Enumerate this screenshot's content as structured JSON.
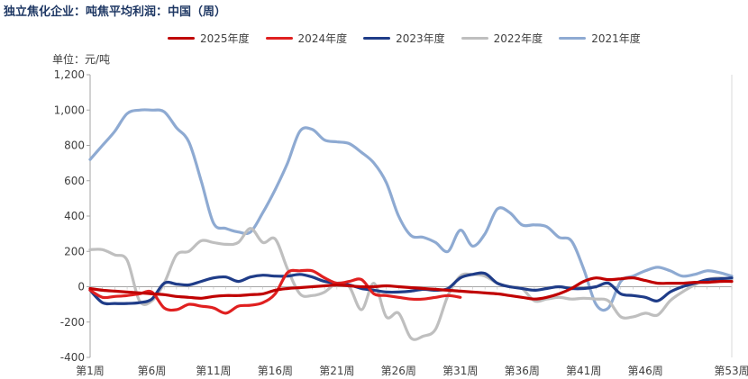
{
  "title": "独立焦化企业：吨焦平均利润：中国（周）",
  "chart_data": {
    "type": "line",
    "unit": "单位：元/吨",
    "ylim": [
      -400,
      1200
    ],
    "yticks": [
      "-400",
      "-200",
      "0",
      "200",
      "400",
      "600",
      "800",
      "1,000",
      "1,200"
    ],
    "ytick_values": [
      -400,
      -200,
      0,
      200,
      400,
      600,
      800,
      1000,
      1200
    ],
    "xlim": [
      1,
      53
    ],
    "xticks": [
      "第1周",
      "第6周",
      "第11周",
      "第16周",
      "第21周",
      "第26周",
      "第31周",
      "第36周",
      "第41周",
      "第46周",
      "第53周"
    ],
    "xtick_values": [
      1,
      6,
      11,
      16,
      21,
      26,
      31,
      36,
      41,
      46,
      53
    ],
    "grid": false,
    "legend_position": "top",
    "series": [
      {
        "name": "2025年度",
        "color": "#c00000",
        "x": [
          1,
          2,
          3,
          4,
          5,
          6,
          7,
          8,
          9,
          10,
          11,
          12,
          13,
          14,
          15,
          16,
          17,
          18,
          19,
          20,
          21,
          22,
          23,
          24,
          25,
          26,
          27,
          28,
          29,
          30,
          31,
          32,
          33,
          34,
          35,
          36,
          37,
          38,
          39,
          40,
          41,
          42,
          43,
          44,
          45,
          46,
          47,
          48,
          49,
          50,
          51,
          52,
          53
        ],
        "y": [
          -10,
          -20,
          -25,
          -30,
          -35,
          -40,
          -45,
          -55,
          -60,
          -65,
          -55,
          -50,
          -50,
          -45,
          -40,
          -20,
          -10,
          -5,
          0,
          5,
          10,
          5,
          0,
          0,
          5,
          0,
          -5,
          -10,
          -15,
          -20,
          -25,
          -30,
          -35,
          -40,
          -50,
          -60,
          -70,
          -60,
          -40,
          -10,
          30,
          50,
          40,
          45,
          50,
          35,
          20,
          20,
          20,
          25,
          25,
          30,
          30
        ]
      },
      {
        "name": "2024年度",
        "color": "#e02020",
        "x": [
          1,
          2,
          3,
          4,
          5,
          6,
          7,
          8,
          9,
          10,
          11,
          12,
          13,
          14,
          15,
          16,
          17,
          18,
          19,
          20,
          21,
          22,
          23,
          24,
          25,
          26,
          27,
          28,
          29,
          30,
          31
        ],
        "y": [
          -20,
          -60,
          -55,
          -50,
          -40,
          -30,
          -120,
          -130,
          -100,
          -110,
          -120,
          -150,
          -110,
          -105,
          -90,
          -40,
          80,
          90,
          90,
          50,
          20,
          30,
          40,
          -40,
          -50,
          -60,
          -70,
          -70,
          -60,
          -50,
          -60
        ]
      },
      {
        "name": "2023年度",
        "color": "#1f3c88",
        "x": [
          1,
          2,
          3,
          4,
          5,
          6,
          7,
          8,
          9,
          10,
          11,
          12,
          13,
          14,
          15,
          16,
          17,
          18,
          19,
          20,
          21,
          22,
          23,
          24,
          25,
          26,
          27,
          28,
          29,
          30,
          31,
          32,
          33,
          34,
          35,
          36,
          37,
          38,
          39,
          40,
          41,
          42,
          43,
          44,
          45,
          46,
          47,
          48,
          49,
          50,
          51,
          52,
          53
        ],
        "y": [
          -20,
          -90,
          -95,
          -95,
          -90,
          -70,
          20,
          15,
          10,
          30,
          50,
          55,
          30,
          55,
          65,
          60,
          60,
          70,
          55,
          30,
          20,
          10,
          -10,
          -20,
          -30,
          -30,
          -25,
          -15,
          -20,
          -10,
          50,
          70,
          75,
          20,
          0,
          -10,
          -20,
          -10,
          0,
          -10,
          -10,
          0,
          20,
          -40,
          -50,
          -60,
          -80,
          -30,
          0,
          20,
          40,
          45,
          50
        ]
      },
      {
        "name": "2022年度",
        "color": "#bfbfbf",
        "x": [
          1,
          2,
          3,
          4,
          5,
          6,
          7,
          8,
          9,
          10,
          11,
          12,
          13,
          14,
          15,
          16,
          17,
          18,
          19,
          20,
          21,
          22,
          23,
          24,
          25,
          26,
          27,
          28,
          29,
          30,
          31,
          32,
          33,
          34,
          35,
          36,
          37,
          38,
          39,
          40,
          41,
          42,
          43,
          44,
          45,
          46,
          47,
          48,
          49,
          50,
          51,
          52,
          53
        ],
        "y": [
          210,
          210,
          180,
          150,
          -80,
          -80,
          20,
          180,
          200,
          260,
          250,
          240,
          250,
          330,
          250,
          270,
          100,
          -40,
          -50,
          -30,
          20,
          0,
          -130,
          20,
          -170,
          -150,
          -290,
          -280,
          -240,
          -50,
          60,
          70,
          60,
          20,
          0,
          -10,
          -80,
          -70,
          -60,
          -70,
          -65,
          -70,
          -80,
          -170,
          -170,
          -150,
          -160,
          -80,
          -30,
          10,
          40,
          50,
          40
        ]
      },
      {
        "name": "2021年度",
        "color": "#8eaad2",
        "x": [
          1,
          2,
          3,
          4,
          5,
          6,
          7,
          8,
          9,
          10,
          11,
          12,
          13,
          14,
          15,
          16,
          17,
          18,
          19,
          20,
          21,
          22,
          23,
          24,
          25,
          26,
          27,
          28,
          29,
          30,
          31,
          32,
          33,
          34,
          35,
          36,
          37,
          38,
          39,
          40,
          41,
          42,
          43,
          44,
          45,
          46,
          47,
          48,
          49,
          50,
          51,
          52,
          53
        ],
        "y": [
          720,
          800,
          880,
          980,
          1000,
          1000,
          990,
          900,
          820,
          600,
          360,
          330,
          310,
          310,
          420,
          550,
          700,
          880,
          890,
          830,
          820,
          810,
          760,
          700,
          590,
          400,
          290,
          280,
          250,
          200,
          320,
          230,
          300,
          440,
          420,
          350,
          350,
          340,
          280,
          260,
          100,
          -100,
          -120,
          30,
          60,
          90,
          110,
          90,
          60,
          70,
          90,
          80,
          60
        ]
      }
    ]
  }
}
